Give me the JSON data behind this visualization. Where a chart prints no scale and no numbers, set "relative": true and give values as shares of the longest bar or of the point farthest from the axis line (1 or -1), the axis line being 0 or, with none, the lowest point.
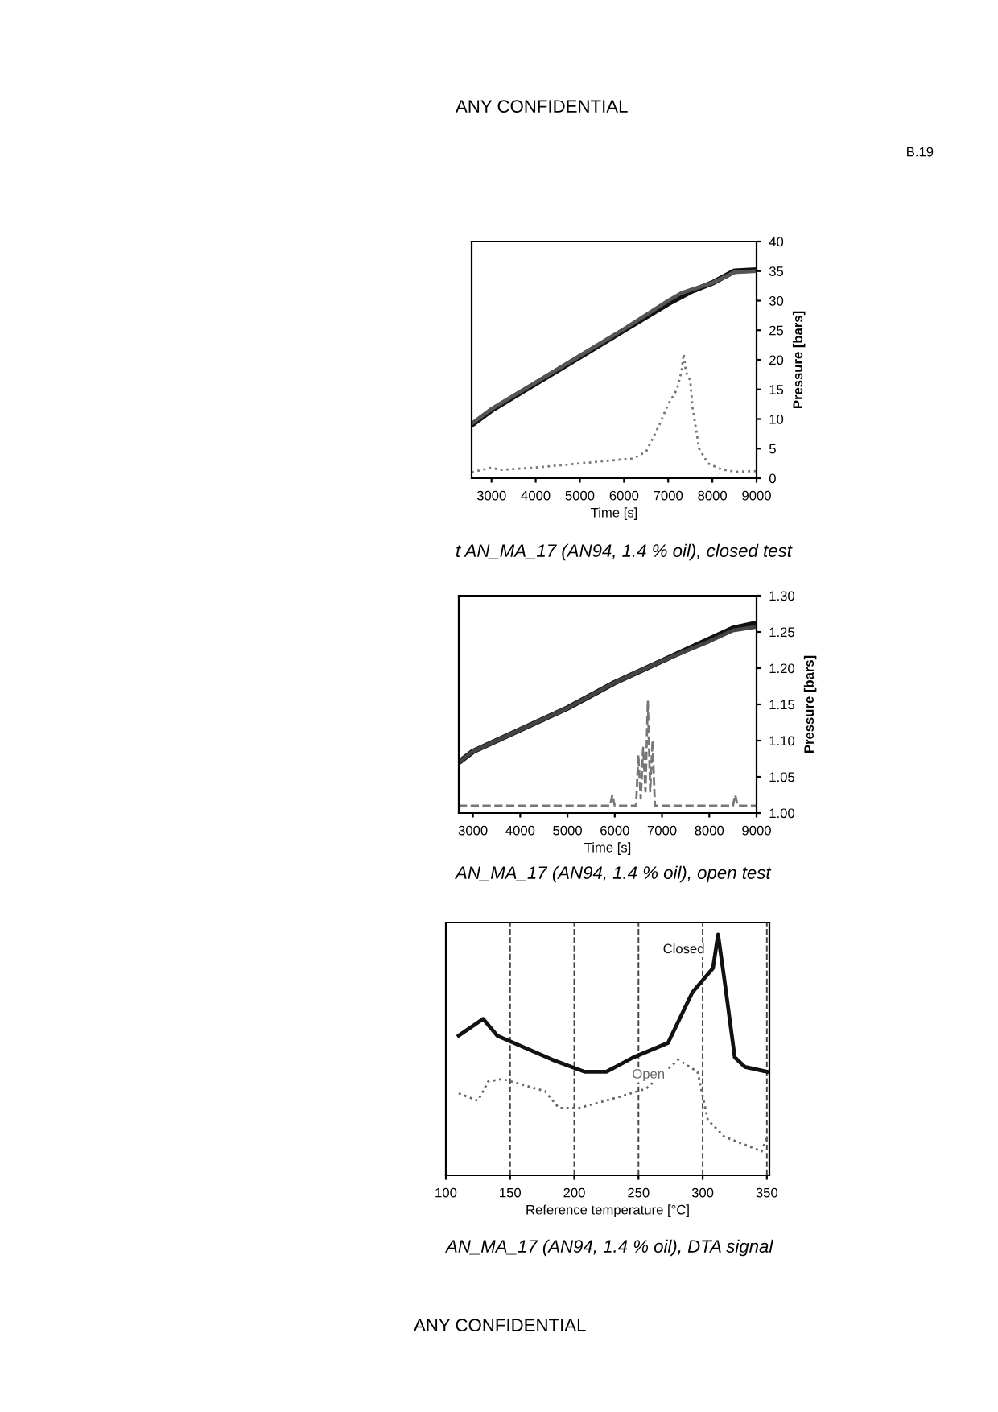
{
  "chart_data": [
    {
      "type": "line",
      "xlabel": "Time [s]",
      "ylabel": "Pressure [bars]",
      "xlim": [
        2550,
        9000
      ],
      "xticks": [
        3000,
        4000,
        5000,
        6000,
        7000,
        8000,
        9000
      ],
      "ylim": [
        0,
        40
      ],
      "yticks": [
        0,
        5,
        10,
        15,
        20,
        25,
        30,
        35,
        40
      ],
      "grid": false,
      "annotations": [
        "ANY CONFIDENTIAL",
        "B.19",
        "t AN_MA_17 (AN94, 1.4 % oil), closed test"
      ],
      "series": [
        {
          "color": "#111111",
          "line_style": "solid",
          "x": [
            2550,
            3000,
            4000,
            5000,
            6000,
            7000,
            7500,
            8000,
            8500,
            9000
          ],
          "values": [
            9,
            11.5,
            16,
            20.5,
            25,
            29.5,
            31.5,
            33,
            35,
            35.2
          ]
        },
        {
          "color": "#555555",
          "line_style": "solid",
          "x": [
            2550,
            3000,
            4000,
            5000,
            6000,
            7000,
            7300,
            7500,
            8000,
            8500,
            9000
          ],
          "values": [
            9.2,
            11.7,
            16.2,
            20.7,
            25.2,
            30,
            31.3,
            31.8,
            33,
            34.8,
            35
          ]
        },
        {
          "color": "#777777",
          "line_style": "dotted",
          "x": [
            2550,
            3000,
            3200,
            4000,
            5000,
            6000,
            6200,
            6500,
            6800,
            7000,
            7200,
            7300,
            7350,
            7400,
            7500,
            7550,
            7700,
            7900,
            8200,
            8500,
            9000
          ],
          "values": [
            1,
            1.8,
            1.4,
            1.8,
            2.5,
            3.2,
            3.3,
            4.5,
            9,
            12.5,
            15,
            18,
            21,
            18,
            16.5,
            12,
            5,
            2.5,
            1.5,
            1.1,
            1.2
          ]
        }
      ]
    },
    {
      "type": "line",
      "xlabel": "Time [s]",
      "ylabel": "Pressure [bars]",
      "xlim": [
        2700,
        9000
      ],
      "xticks": [
        3000,
        4000,
        5000,
        6000,
        7000,
        8000,
        9000
      ],
      "ylim": [
        1.0,
        1.3
      ],
      "yticks": [
        {
          "value": 1.0,
          "label": "1.00"
        },
        {
          "value": 1.05,
          "label": "1.05"
        },
        {
          "value": 1.1,
          "label": "1.10"
        },
        {
          "value": 1.15,
          "label": "1.15"
        },
        {
          "value": 1.2,
          "label": "1.20"
        },
        {
          "value": 1.25,
          "label": "1.25"
        },
        {
          "value": 1.3,
          "label": "1.30"
        }
      ],
      "grid": false,
      "annotations": [
        "AN_MA_17 (AN94, 1.4 % oil), open test"
      ],
      "series": [
        {
          "color": "#111111",
          "line_style": "solid",
          "x": [
            2700,
            3000,
            4000,
            5000,
            6000,
            7000,
            8000,
            8500,
            9000
          ],
          "values": [
            1.07,
            1.085,
            1.115,
            1.145,
            1.18,
            1.21,
            1.24,
            1.255,
            1.262
          ]
        },
        {
          "color": "#444444",
          "line_style": "solid",
          "x": [
            2700,
            3000,
            4000,
            5000,
            6000,
            7000,
            8000,
            8500,
            9000
          ],
          "values": [
            1.07,
            1.085,
            1.115,
            1.145,
            1.18,
            1.21,
            1.237,
            1.252,
            1.257
          ]
        },
        {
          "color": "#777777",
          "line_style": "dashed",
          "x": [
            2700,
            5900,
            5950,
            6000,
            6450,
            6500,
            6550,
            6600,
            6650,
            6700,
            6750,
            6800,
            6850,
            8500,
            8550,
            8600,
            9000
          ],
          "values": [
            1.01,
            1.01,
            1.025,
            1.01,
            1.01,
            1.08,
            1.02,
            1.09,
            1.03,
            1.155,
            1.03,
            1.1,
            1.01,
            1.01,
            1.025,
            1.01,
            1.01
          ]
        }
      ]
    },
    {
      "type": "line",
      "relative": true,
      "xlabel": "Reference temperature [°C]",
      "xlim": [
        100,
        352
      ],
      "xticks": [
        100,
        150,
        200,
        250,
        300,
        350
      ],
      "grid": "x",
      "annotations": [
        "AN_MA_17 (AN94, 1.4 % oil), DTA signal",
        "ANY CONFIDENTIAL"
      ],
      "series": [
        {
          "name": "Closed",
          "color": "#111111",
          "line_style": "solid",
          "x": [
            110,
            129,
            140,
            183,
            208,
            225,
            246,
            273,
            292,
            308,
            312,
            317,
            325,
            333,
            350
          ],
          "values": [
            0.58,
            0.65,
            0.58,
            0.48,
            0.43,
            0.43,
            0.49,
            0.55,
            0.76,
            0.86,
            1.0,
            0.81,
            0.49,
            0.45,
            0.43
          ]
        },
        {
          "name": "Open",
          "color": "#666666",
          "line_style": "dotted",
          "x": [
            110,
            125,
            133,
            144,
            177,
            188,
            204,
            238,
            256,
            281,
            296,
            304,
            317,
            346,
            350
          ],
          "values": [
            0.34,
            0.31,
            0.39,
            0.4,
            0.35,
            0.28,
            0.28,
            0.33,
            0.36,
            0.48,
            0.43,
            0.23,
            0.16,
            0.1,
            0.16
          ]
        }
      ]
    }
  ]
}
